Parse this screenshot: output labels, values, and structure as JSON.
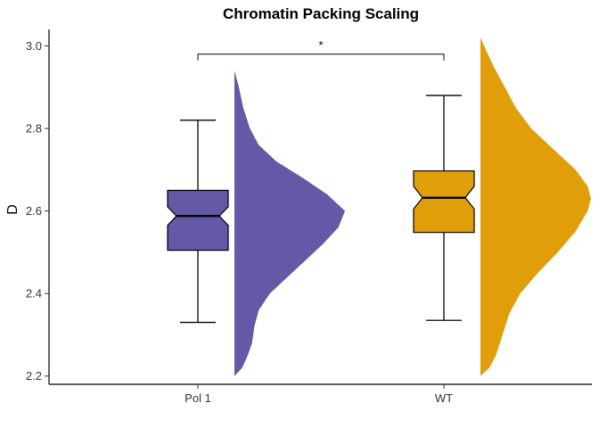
{
  "chart_data": {
    "type": "box_with_half_violin",
    "title": "Chromatin Packing Scaling",
    "xlabel": "",
    "ylabel": "D",
    "ylim": [
      2.18,
      3.04
    ],
    "yticks": [
      2.2,
      2.4,
      2.6,
      2.8,
      3.0
    ],
    "ytick_labels": [
      "2.2",
      "2.4",
      "2.6",
      "2.8",
      "3.0"
    ],
    "categories": [
      "Pol 1",
      "WT"
    ],
    "grid": false,
    "legend": "none",
    "series": [
      {
        "category": "Pol 1",
        "color": "#6359a6",
        "box": {
          "whisker_low": 2.33,
          "q1": 2.505,
          "median": 2.588,
          "q3": 2.65,
          "whisker_high": 2.82,
          "notch_low": 2.565,
          "notch_high": 2.61
        },
        "density": {
          "y": [
            2.2,
            2.22,
            2.25,
            2.28,
            2.32,
            2.36,
            2.4,
            2.44,
            2.48,
            2.52,
            2.56,
            2.6,
            2.64,
            2.68,
            2.72,
            2.76,
            2.8,
            2.85,
            2.9,
            2.94
          ],
          "value": [
            0.0,
            0.07,
            0.12,
            0.16,
            0.18,
            0.22,
            0.32,
            0.48,
            0.64,
            0.8,
            0.94,
            1.0,
            0.84,
            0.62,
            0.38,
            0.22,
            0.14,
            0.08,
            0.04,
            0.0
          ]
        }
      },
      {
        "category": "WT",
        "color": "#e09e0a",
        "box": {
          "whisker_low": 2.335,
          "q1": 2.548,
          "median": 2.632,
          "q3": 2.697,
          "whisker_high": 2.88,
          "notch_low": 2.605,
          "notch_high": 2.66
        },
        "density": {
          "y": [
            2.2,
            2.22,
            2.25,
            2.3,
            2.35,
            2.4,
            2.45,
            2.5,
            2.55,
            2.6,
            2.63,
            2.66,
            2.7,
            2.75,
            2.8,
            2.85,
            2.9,
            2.95,
            2.99,
            3.02
          ],
          "value": [
            0.0,
            0.08,
            0.14,
            0.2,
            0.26,
            0.36,
            0.52,
            0.7,
            0.86,
            0.97,
            1.0,
            0.97,
            0.86,
            0.66,
            0.46,
            0.32,
            0.22,
            0.12,
            0.05,
            0.0
          ]
        }
      }
    ],
    "annotations": [
      {
        "type": "significance_bracket",
        "from": "Pol 1",
        "to": "WT",
        "y": 2.98,
        "label": "*"
      }
    ]
  }
}
